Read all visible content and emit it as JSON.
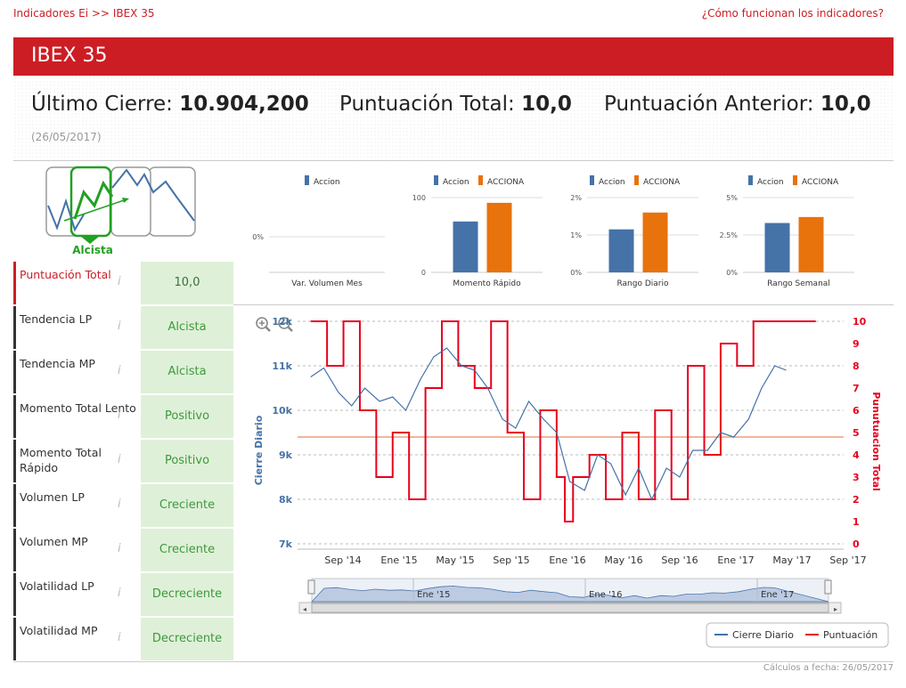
{
  "breadcrumb": {
    "root": "Indicadores Ei",
    "sep": ">>",
    "current": "IBEX 35"
  },
  "help_link": "¿Cómo funcionan los indicadores?",
  "title": "IBEX 35",
  "summary": {
    "last_close_label": "Último Cierre:",
    "last_close_value": "10.904,200",
    "total_label": "Puntuación Total:",
    "total_value": "10,0",
    "prev_label": "Puntuación Anterior:",
    "prev_value": "10,0",
    "date": "(26/05/2017)"
  },
  "trend_logo": {
    "label": "Alcista",
    "color": "#22a022"
  },
  "indicators": [
    {
      "name": "Puntuación Total",
      "value": "10,0",
      "highlight": true
    },
    {
      "name": "Tendencia LP",
      "value": "Alcista"
    },
    {
      "name": "Tendencia MP",
      "value": "Alcista"
    },
    {
      "name": "Momento Total Lento",
      "value": "Positivo"
    },
    {
      "name": "Momento Total Rápido",
      "value": "Positivo"
    },
    {
      "name": "Volumen LP",
      "value": "Creciente"
    },
    {
      "name": "Volumen MP",
      "value": "Creciente"
    },
    {
      "name": "Volatilidad LP",
      "value": "Decreciente"
    },
    {
      "name": "Volatilidad MP",
      "value": "Decreciente"
    }
  ],
  "info_icon": "i",
  "footer": "Cálculos a fecha: 26/05/2017",
  "chart_data": [
    {
      "type": "bar",
      "title": "Var. Volumen Mes",
      "legend": [
        "Accion"
      ],
      "yticks": [
        "0%"
      ],
      "series": []
    },
    {
      "type": "bar",
      "title": "Momento Rápido",
      "legend": [
        "Accion",
        "ACCIONA"
      ],
      "yticks": [
        "0",
        "100"
      ],
      "ylim": [
        0,
        100
      ],
      "series": [
        {
          "name": "Accion",
          "value": 68,
          "color": "#4572a7"
        },
        {
          "name": "ACCIONA",
          "value": 93,
          "color": "#e8720c"
        }
      ]
    },
    {
      "type": "bar",
      "title": "Rango Diario",
      "legend": [
        "Accion",
        "ACCIONA"
      ],
      "yticks": [
        "0%",
        "1%",
        "2%"
      ],
      "ylim": [
        0,
        2
      ],
      "series": [
        {
          "name": "Accion",
          "value": 1.15,
          "color": "#4572a7"
        },
        {
          "name": "ACCIONA",
          "value": 1.6,
          "color": "#e8720c"
        }
      ]
    },
    {
      "type": "bar",
      "title": "Rango Semanal",
      "legend": [
        "Accion",
        "ACCIONA"
      ],
      "yticks": [
        "0%",
        "2.5%",
        "5%"
      ],
      "ylim": [
        0,
        5
      ],
      "series": [
        {
          "name": "Accion",
          "value": 3.3,
          "color": "#4572a7"
        },
        {
          "name": "ACCIONA",
          "value": 3.7,
          "color": "#e8720c"
        }
      ]
    },
    {
      "type": "line",
      "ylabel_left": "Cierre Diario",
      "ylabel_right": "Punutuacion Total",
      "left_ticks": [
        "7k",
        "8k",
        "9k",
        "10k",
        "11k",
        "12k"
      ],
      "left_ylim": [
        7000,
        12000
      ],
      "right_ticks": [
        "0",
        "1",
        "2",
        "3",
        "4",
        "5",
        "6",
        "7",
        "8",
        "9",
        "10"
      ],
      "right_ylim": [
        0,
        10
      ],
      "x_ticks": [
        "Sep '14",
        "Ene '15",
        "May '15",
        "Sep '15",
        "Ene '16",
        "May '16",
        "Sep '16",
        "Ene '17",
        "May '17",
        "Sep '17"
      ],
      "navigator_labels": [
        "Ene '15",
        "Ene '16",
        "Ene '17"
      ],
      "reference_line": 4.8,
      "legend": [
        "Cierre Diario",
        "Puntuación"
      ],
      "series": [
        {
          "name": "Cierre Diario",
          "color": "#4572a7",
          "points": [
            [
              2014.5,
              10750
            ],
            [
              2014.58,
              10950
            ],
            [
              2014.67,
              10400
            ],
            [
              2014.75,
              10100
            ],
            [
              2014.83,
              10500
            ],
            [
              2014.92,
              10200
            ],
            [
              2015.0,
              10300
            ],
            [
              2015.08,
              10000
            ],
            [
              2015.17,
              10700
            ],
            [
              2015.25,
              11200
            ],
            [
              2015.33,
              11400
            ],
            [
              2015.42,
              11000
            ],
            [
              2015.5,
              10900
            ],
            [
              2015.58,
              10500
            ],
            [
              2015.67,
              9800
            ],
            [
              2015.75,
              9600
            ],
            [
              2015.83,
              10200
            ],
            [
              2015.92,
              9800
            ],
            [
              2016.0,
              9500
            ],
            [
              2016.08,
              8400
            ],
            [
              2016.17,
              8200
            ],
            [
              2016.25,
              9000
            ],
            [
              2016.33,
              8800
            ],
            [
              2016.42,
              8100
            ],
            [
              2016.5,
              8700
            ],
            [
              2016.58,
              8000
            ],
            [
              2016.67,
              8700
            ],
            [
              2016.75,
              8500
            ],
            [
              2016.83,
              9100
            ],
            [
              2016.92,
              9100
            ],
            [
              2017.0,
              9500
            ],
            [
              2017.08,
              9400
            ],
            [
              2017.17,
              9800
            ],
            [
              2017.25,
              10500
            ],
            [
              2017.33,
              11000
            ],
            [
              2017.4,
              10900
            ]
          ]
        },
        {
          "name": "Puntuación",
          "color": "#e8001c",
          "points": [
            [
              2014.5,
              10
            ],
            [
              2014.6,
              8
            ],
            [
              2014.7,
              10
            ],
            [
              2014.8,
              6
            ],
            [
              2014.9,
              3
            ],
            [
              2015.0,
              5
            ],
            [
              2015.1,
              2
            ],
            [
              2015.2,
              7
            ],
            [
              2015.3,
              10
            ],
            [
              2015.4,
              8
            ],
            [
              2015.5,
              7
            ],
            [
              2015.6,
              10
            ],
            [
              2015.7,
              5
            ],
            [
              2015.8,
              2
            ],
            [
              2015.9,
              6
            ],
            [
              2016.0,
              3
            ],
            [
              2016.05,
              1
            ],
            [
              2016.1,
              3
            ],
            [
              2016.2,
              4
            ],
            [
              2016.3,
              2
            ],
            [
              2016.4,
              5
            ],
            [
              2016.5,
              2
            ],
            [
              2016.6,
              6
            ],
            [
              2016.7,
              2
            ],
            [
              2016.8,
              8
            ],
            [
              2016.9,
              4
            ],
            [
              2017.0,
              9
            ],
            [
              2017.1,
              8
            ],
            [
              2017.2,
              10
            ],
            [
              2017.4,
              10
            ]
          ]
        }
      ]
    }
  ],
  "colors": {
    "brand_red": "#cc1d24",
    "accion_blue": "#4572a7",
    "acciona_orange": "#e8720c",
    "green_bg": "#dff0d8",
    "green_text": "#3c9a3c"
  }
}
